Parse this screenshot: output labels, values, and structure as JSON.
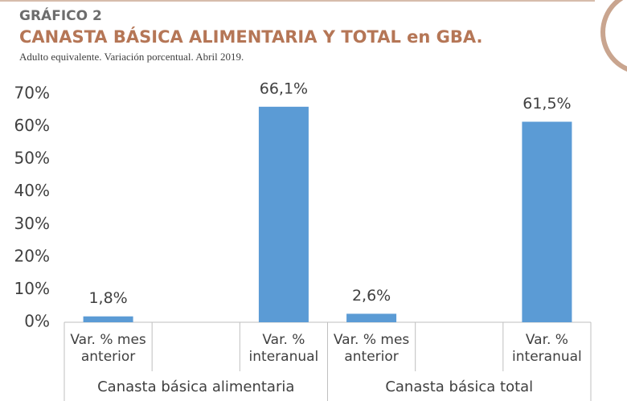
{
  "chart_data": {
    "type": "bar",
    "kicker": "GRÁFICO 2",
    "title": "CANASTA BÁSICA ALIMENTARIA Y TOTAL en GBA.",
    "subtitle": "Adulto equivalente. Variación porcentual. Abril 2019.",
    "categories": [
      "Var. % mes anterior",
      null,
      "Var. % interanual",
      "Var. % mes anterior",
      null,
      "Var. % interanual"
    ],
    "groups": [
      "Canasta básica alimentaria",
      "Canasta básica total"
    ],
    "values": [
      1.8,
      null,
      66.1,
      2.6,
      null,
      61.5
    ],
    "value_labels": [
      "1,8%",
      null,
      "66,1%",
      "2,6%",
      null,
      "61,5%"
    ],
    "color": "#5b9bd5",
    "ylim": [
      0,
      70
    ],
    "yticks": [
      {
        "value": 0,
        "label": "0%"
      },
      {
        "value": 10,
        "label": "10%"
      },
      {
        "value": 20,
        "label": "20%"
      },
      {
        "value": 30,
        "label": "30%"
      },
      {
        "value": 40,
        "label": "40%"
      },
      {
        "value": 50,
        "label": "50%"
      },
      {
        "value": 60,
        "label": "60%"
      },
      {
        "value": 70,
        "label": "70%"
      }
    ],
    "grid": false
  }
}
